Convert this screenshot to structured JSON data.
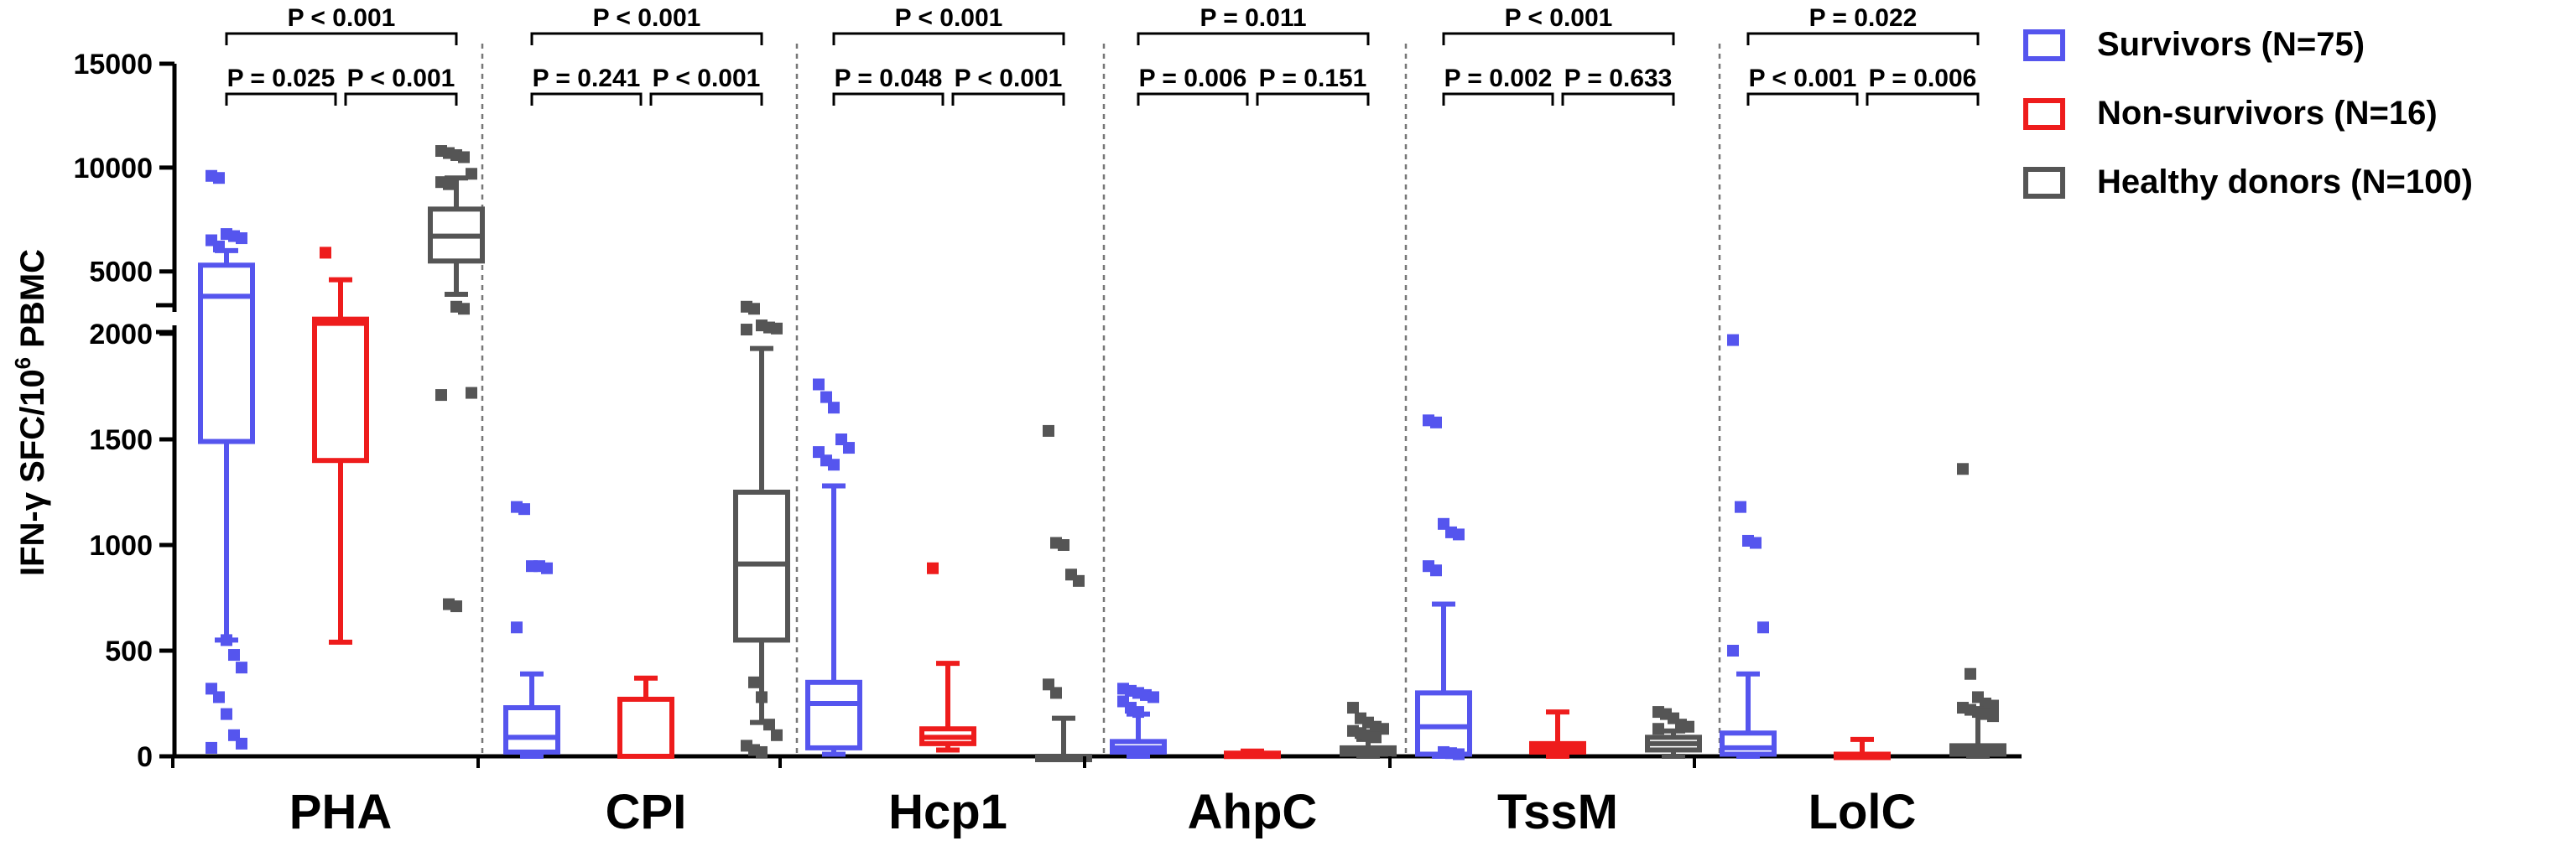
{
  "chart_data": {
    "type": "box",
    "ylabel_main": "IFN-γ SFC/10",
    "ylabel_sup": "6",
    "ylabel_tail": " PBMC",
    "y_ticks": [
      {
        "value": 0,
        "label": "0"
      },
      {
        "value": 500,
        "label": "500"
      },
      {
        "value": 1000,
        "label": "1000"
      },
      {
        "value": 1500,
        "label": "1500"
      },
      {
        "value": 2000,
        "label": "2000"
      },
      {
        "value": 5000,
        "label": "5000"
      },
      {
        "value": 10000,
        "label": "10000"
      },
      {
        "value": 15000,
        "label": "15000"
      }
    ],
    "axis": {
      "lower_range": [
        0,
        2000
      ],
      "upper_range": [
        2000,
        15000
      ],
      "break_value": 2000
    },
    "colors": {
      "survivors": "#5555ee",
      "non_survivors": "#ee1c1c",
      "healthy": "#555555"
    },
    "legend": [
      {
        "key": "survivors",
        "label": "Survivors (N=75)"
      },
      {
        "key": "non_survivors",
        "label": "Non-survivors (N=16)"
      },
      {
        "key": "healthy",
        "label": "Healthy donors (N=100)"
      }
    ],
    "groups": [
      {
        "name": "PHA",
        "pvalues": {
          "top": "P < 0.001",
          "left": "P = 0.025",
          "right": "P < 0.001"
        },
        "boxes": [
          {
            "series": "survivors",
            "min": 550,
            "q1": 1490,
            "median": 3800,
            "q3": 5300,
            "max": 6000,
            "outliers": [
              9600,
              9500,
              6800,
              6700,
              6600,
              6500,
              6200,
              550,
              480,
              420,
              320,
              280,
              200,
              100,
              60,
              40
            ]
          },
          {
            "series": "non_survivors",
            "min": 540,
            "q1": 1400,
            "median": 2500,
            "q3": 2700,
            "max": 4600,
            "outliers": [
              5900
            ]
          },
          {
            "series": "healthy",
            "min": 3900,
            "q1": 5500,
            "median": 6700,
            "q3": 8000,
            "max": 9500,
            "outliers": [
              10800,
              10700,
              10600,
              10500,
              9700,
              9300,
              9200,
              3300,
              3200,
              1720,
              1710,
              720,
              710
            ]
          }
        ]
      },
      {
        "name": "CPI",
        "pvalues": {
          "top": "P < 0.001",
          "left": "P = 0.241",
          "right": "P < 0.001"
        },
        "boxes": [
          {
            "series": "survivors",
            "min": 0,
            "q1": 20,
            "median": 90,
            "q3": 230,
            "max": 390,
            "outliers": [
              1180,
              1170,
              900,
              900,
              890,
              610
            ]
          },
          {
            "series": "non_survivors",
            "min": 0,
            "q1": 0,
            "median": 0,
            "q3": 270,
            "max": 370,
            "outliers": []
          },
          {
            "series": "healthy",
            "min": 160,
            "q1": 550,
            "median": 910,
            "q3": 1250,
            "max": 1930,
            "outliers": [
              3300,
              3200,
              2400,
              2300,
              2250,
              2200,
              350,
              280,
              150,
              100,
              50,
              30,
              20
            ]
          }
        ]
      },
      {
        "name": "Hcp1",
        "pvalues": {
          "top": "P < 0.001",
          "left": "P = 0.048",
          "right": "P < 0.001"
        },
        "boxes": [
          {
            "series": "survivors",
            "min": 10,
            "q1": 40,
            "median": 250,
            "q3": 350,
            "max": 1280,
            "outliers": [
              1760,
              1700,
              1650,
              1500,
              1460,
              1440,
              1400,
              1380
            ]
          },
          {
            "series": "non_survivors",
            "min": 30,
            "q1": 60,
            "median": 90,
            "q3": 130,
            "max": 440,
            "outliers": [
              890
            ]
          },
          {
            "series": "healthy",
            "min": 0,
            "q1": 0,
            "median": 0,
            "q3": 0,
            "max": 180,
            "outliers": [
              1540,
              1010,
              1000,
              860,
              830,
              340,
              300
            ]
          }
        ]
      },
      {
        "name": "AhpC",
        "pvalues": {
          "top": "P = 0.011",
          "left": "P = 0.006",
          "right": "P = 0.151"
        },
        "boxes": [
          {
            "series": "survivors",
            "min": 0,
            "q1": 20,
            "median": 40,
            "q3": 70,
            "max": 200,
            "outliers": [
              320,
              310,
              300,
              290,
              280,
              260,
              230,
              210
            ]
          },
          {
            "series": "non_survivors",
            "min": 0,
            "q1": 5,
            "median": 10,
            "q3": 15,
            "max": 25,
            "outliers": []
          },
          {
            "series": "healthy",
            "min": 0,
            "q1": 10,
            "median": 20,
            "q3": 40,
            "max": 80,
            "outliers": [
              230,
              180,
              160,
              140,
              130,
              120,
              110,
              100,
              90
            ]
          }
        ]
      },
      {
        "name": "TssM",
        "pvalues": {
          "top": "P < 0.001",
          "left": "P = 0.002",
          "right": "P = 0.633"
        },
        "boxes": [
          {
            "series": "survivors",
            "min": 0,
            "q1": 10,
            "median": 140,
            "q3": 300,
            "max": 720,
            "outliers": [
              1590,
              1580,
              1100,
              1060,
              1050,
              900,
              880,
              20,
              15,
              10
            ]
          },
          {
            "series": "non_survivors",
            "min": 0,
            "q1": 20,
            "median": 40,
            "q3": 60,
            "max": 210,
            "outliers": []
          },
          {
            "series": "healthy",
            "min": 0,
            "q1": 30,
            "median": 60,
            "q3": 90,
            "max": 120,
            "outliers": [
              210,
              200,
              180,
              150,
              140,
              130
            ]
          }
        ]
      },
      {
        "name": "LolC",
        "pvalues": {
          "top": "P = 0.022",
          "left": "P < 0.001",
          "right": "P = 0.006"
        },
        "boxes": [
          {
            "series": "survivors",
            "min": 0,
            "q1": 10,
            "median": 40,
            "q3": 110,
            "max": 390,
            "outliers": [
              1970,
              1180,
              1020,
              1010,
              610,
              500
            ]
          },
          {
            "series": "non_survivors",
            "min": 0,
            "q1": 0,
            "median": 5,
            "q3": 10,
            "max": 80,
            "outliers": []
          },
          {
            "series": "healthy",
            "min": 0,
            "q1": 10,
            "median": 30,
            "q3": 50,
            "max": 220,
            "outliers": [
              1360,
              390,
              280,
              250,
              240,
              230,
              220,
              210,
              200,
              190
            ]
          }
        ]
      }
    ]
  }
}
